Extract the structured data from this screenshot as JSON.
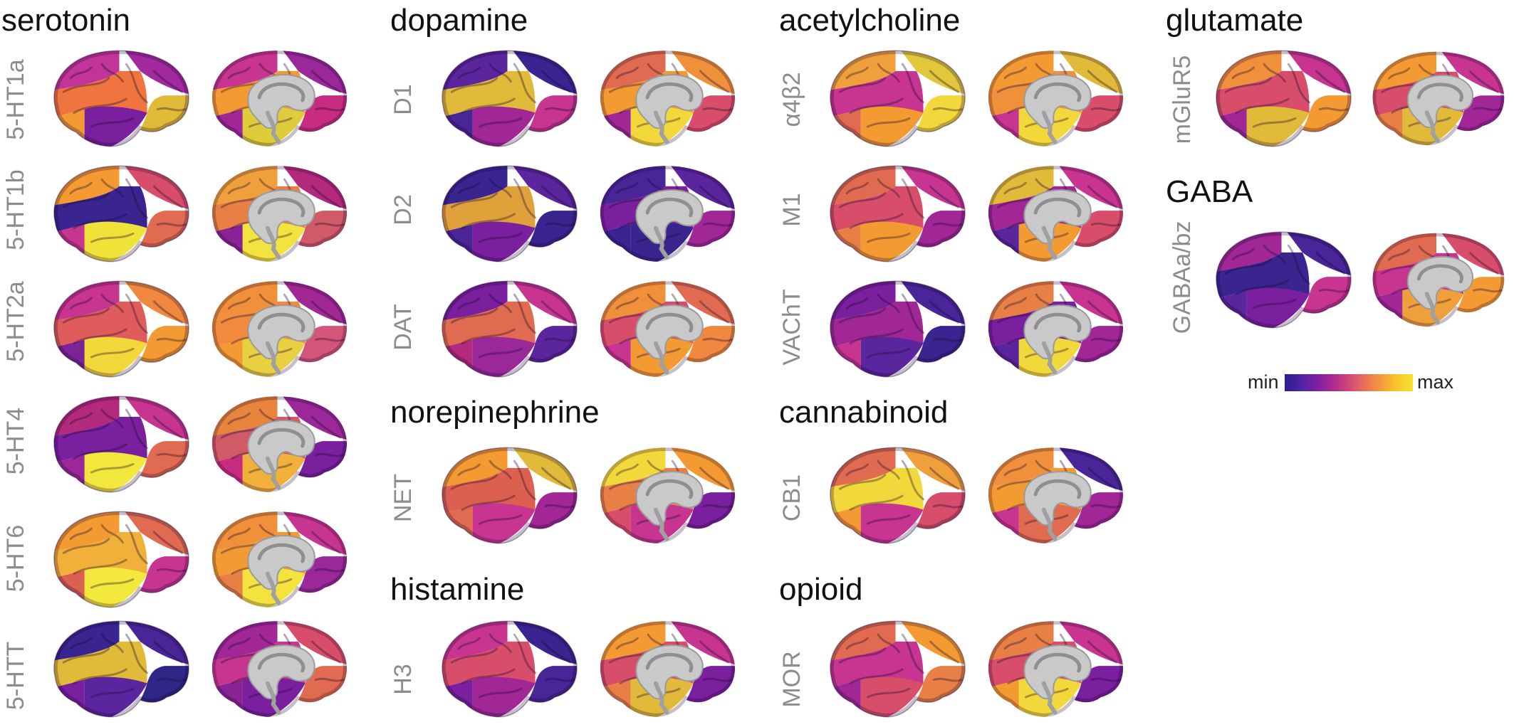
{
  "groups": [
    {
      "title": "serotonin",
      "receptors": [
        {
          "label": "5-HT1a",
          "lh": [
            "#c2349a",
            "#a32a9e",
            "#7a1f9d",
            "#f0743f",
            "#e0ba38",
            "#f49a32"
          ],
          "rh": [
            "#c73590",
            "#9a2898",
            "#e0cc3a",
            "#f49a32",
            "#c82c80",
            "#a12797"
          ]
        },
        {
          "label": "5-HT1b",
          "lh": [
            "#f59a32",
            "#d84e6a",
            "#f1e23a",
            "#3a2490",
            "#e16b50",
            "#c73590"
          ],
          "rh": [
            "#f0a03a",
            "#b3297d",
            "#f4e23e",
            "#e88046",
            "#d05a66",
            "#8a2496"
          ]
        },
        {
          "label": "5-HT2a",
          "lh": [
            "#c73590",
            "#f0883f",
            "#f3d83c",
            "#e05c5c",
            "#f49a32",
            "#7c2395"
          ],
          "rh": [
            "#f0903a",
            "#a12795",
            "#e8d040",
            "#f28a3e",
            "#d4557a",
            "#f49a32"
          ]
        },
        {
          "label": "5-HT4",
          "lh": [
            "#b3297d",
            "#c73590",
            "#f3e63c",
            "#7a1f9d",
            "#e16b50",
            "#9a2898"
          ],
          "rh": [
            "#e8843c",
            "#9a2898",
            "#f0b03a",
            "#d05a66",
            "#7a1f9d",
            "#c82c80"
          ]
        },
        {
          "label": "5-HT6",
          "lh": [
            "#f49a32",
            "#e16b50",
            "#f4e83c",
            "#f0b03a",
            "#c73590",
            "#dc6050"
          ],
          "rh": [
            "#f0903a",
            "#c73590",
            "#f4e23e",
            "#f49a32",
            "#9a2898",
            "#e88046"
          ]
        },
        {
          "label": "5-HTT",
          "lh": [
            "#3a2490",
            "#4a2598",
            "#5b259d",
            "#e0ba38",
            "#2f2687",
            "#7a1f9d"
          ],
          "rh": [
            "#a12797",
            "#d84e6a",
            "#7a1f9d",
            "#c73590",
            "#e16b50",
            "#8a2496"
          ]
        }
      ]
    },
    {
      "title": "dopamine",
      "receptors": [
        {
          "label": "D1",
          "lh": [
            "#5b259d",
            "#3a2490",
            "#a12797",
            "#e0ba38",
            "#c73590",
            "#4a2598"
          ],
          "rh": [
            "#e16b50",
            "#f0903a",
            "#f3d83c",
            "#f49a32",
            "#d84e6a",
            "#a12797"
          ]
        },
        {
          "label": "D2",
          "lh": [
            "#3a2490",
            "#5b259d",
            "#7a1f9d",
            "#e0a03a",
            "#3a2490",
            "#4a2598"
          ],
          "rh": [
            "#4a2598",
            "#5b259d",
            "#3a2490",
            "#7a1f9d",
            "#a12797",
            "#3a2490"
          ]
        },
        {
          "label": "DAT",
          "lh": [
            "#7a1f9d",
            "#c73590",
            "#9a2898",
            "#e16b50",
            "#5b259d",
            "#b3297d"
          ],
          "rh": [
            "#f0903a",
            "#e16b50",
            "#f49a32",
            "#d84e6a",
            "#f0883f",
            "#c73590"
          ]
        }
      ]
    },
    {
      "title": "norepinephrine",
      "receptors": [
        {
          "label": "NET",
          "lh": [
            "#f49a32",
            "#e0ba38",
            "#c73590",
            "#dc6050",
            "#a12797",
            "#e16b50"
          ],
          "rh": [
            "#f3d83c",
            "#f49a32",
            "#c73590",
            "#e88046",
            "#7a1f9d",
            "#d84e6a"
          ]
        }
      ]
    },
    {
      "title": "histamine",
      "receptors": [
        {
          "label": "H3",
          "lh": [
            "#c73590",
            "#3a2490",
            "#a12797",
            "#d84e6a",
            "#4a2598",
            "#7a1f9d"
          ],
          "rh": [
            "#f49a32",
            "#c73590",
            "#e0ba38",
            "#d84e6a",
            "#7a1f9d",
            "#e88046"
          ]
        }
      ]
    },
    {
      "title": "acetylcholine",
      "receptors": [
        {
          "label": "α4β2",
          "lh": [
            "#f0a03a",
            "#e0c83a",
            "#f49a32",
            "#c73590",
            "#f3d83c",
            "#e16b50"
          ],
          "rh": [
            "#f49a32",
            "#e0ba38",
            "#f3d83c",
            "#f0903a",
            "#d84e6a",
            "#c73590"
          ]
        },
        {
          "label": "M1",
          "lh": [
            "#e16b50",
            "#c73590",
            "#f49a32",
            "#d84e6a",
            "#a12797",
            "#e88046"
          ],
          "rh": [
            "#e0ba38",
            "#c73590",
            "#f49a32",
            "#a12797",
            "#d84e6a",
            "#5b259d"
          ]
        },
        {
          "label": "VAChT",
          "lh": [
            "#7a1f9d",
            "#4a2598",
            "#5b259d",
            "#a12797",
            "#3a2490",
            "#c73590"
          ],
          "rh": [
            "#e88046",
            "#c73590",
            "#f3d83c",
            "#7a1f9d",
            "#a12797",
            "#5b259d"
          ]
        }
      ]
    },
    {
      "title": "cannabinoid",
      "receptors": [
        {
          "label": "CB1",
          "lh": [
            "#e16b50",
            "#f0a03a",
            "#c73590",
            "#f3d83c",
            "#d84e6a",
            "#f49a32"
          ],
          "rh": [
            "#f0903a",
            "#4a2598",
            "#e16b50",
            "#f49a32",
            "#a12797",
            "#c73590"
          ]
        }
      ]
    },
    {
      "title": "opioid",
      "receptors": [
        {
          "label": "MOR",
          "lh": [
            "#e16b50",
            "#f49a32",
            "#d84e6a",
            "#c73590",
            "#e88046",
            "#a12797"
          ],
          "rh": [
            "#e88046",
            "#c73590",
            "#f3d83c",
            "#d84e6a",
            "#7a1f9d",
            "#f49a32"
          ]
        }
      ]
    },
    {
      "title": "glutamate",
      "receptors": [
        {
          "label": "mGluR5",
          "lh": [
            "#f0903a",
            "#c73590",
            "#e0ba38",
            "#d84e6a",
            "#f49a32",
            "#a12797"
          ],
          "rh": [
            "#f49a32",
            "#c73590",
            "#e0ba38",
            "#d84e6a",
            "#a12797",
            "#e88046"
          ]
        }
      ]
    },
    {
      "title": "GABA",
      "receptors": [
        {
          "label": "GABAa/bz",
          "lh": [
            "#a12797",
            "#4a2598",
            "#7a1f9d",
            "#3a2490",
            "#c73590",
            "#5b259d"
          ],
          "rh": [
            "#e16b50",
            "#d84e6a",
            "#f0a03a",
            "#c73590",
            "#f49a32",
            "#a12797"
          ]
        }
      ]
    }
  ],
  "colorbar": {
    "min_label": "min",
    "max_label": "max"
  }
}
